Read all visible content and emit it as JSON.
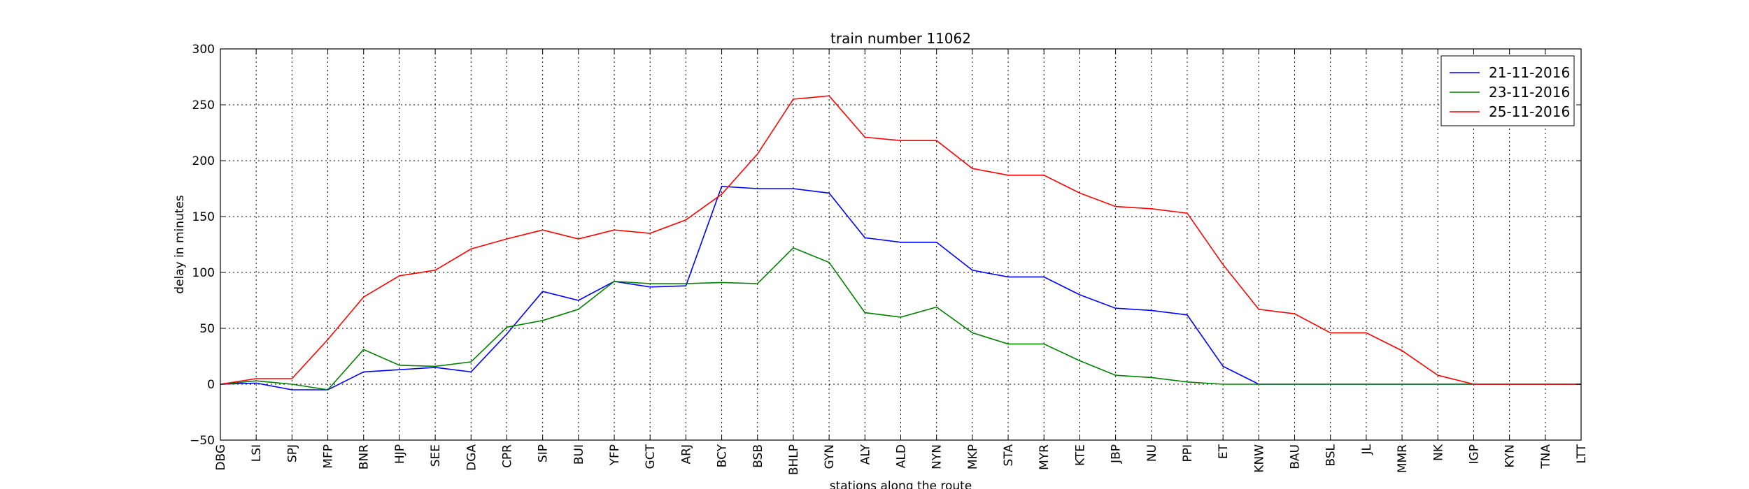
{
  "chart_data": {
    "type": "line",
    "title": "train number 11062",
    "xlabel": "stations along the route",
    "ylabel": "delay in minutes",
    "ylim": [
      -50,
      300
    ],
    "yticks": [
      "−50",
      "0",
      "50",
      "100",
      "150",
      "200",
      "250",
      "300"
    ],
    "grid": true,
    "legend_position": "top-right",
    "categories": [
      "DBG",
      "LSI",
      "SPJ",
      "MFP",
      "BNR",
      "HJP",
      "SEE",
      "DGA",
      "CPR",
      "SIP",
      "BUI",
      "YFP",
      "GCT",
      "ARJ",
      "BCY",
      "BSB",
      "BHLP",
      "GYN",
      "ALY",
      "ALD",
      "NYN",
      "MKP",
      "STA",
      "MYR",
      "KTE",
      "JBP",
      "NU",
      "PPI",
      "ET",
      "KNW",
      "BAU",
      "BSL",
      "JL",
      "MMR",
      "NK",
      "IGP",
      "KYN",
      "TNA",
      "LTT"
    ],
    "series": [
      {
        "name": "21-11-2016",
        "color": "#0000ff",
        "values": [
          0,
          1,
          -5,
          -5,
          11,
          13,
          15,
          11,
          45,
          83,
          75,
          92,
          87,
          88,
          177,
          175,
          175,
          171,
          131,
          127,
          127,
          102,
          96,
          96,
          80,
          68,
          66,
          62,
          16,
          0,
          0,
          0,
          0,
          0,
          0,
          0,
          0,
          0,
          0
        ]
      },
      {
        "name": "23-11-2016",
        "color": "#008000",
        "values": [
          0,
          3,
          0,
          -5,
          31,
          17,
          16,
          20,
          51,
          57,
          67,
          92,
          90,
          90,
          91,
          90,
          122,
          109,
          64,
          60,
          69,
          46,
          36,
          36,
          21,
          8,
          6,
          2,
          0,
          0,
          0,
          0,
          0,
          0,
          0,
          0,
          0,
          0,
          0
        ]
      },
      {
        "name": "25-11-2016",
        "color": "#ff0000",
        "values": [
          0,
          5,
          5,
          40,
          78,
          97,
          102,
          121,
          130,
          138,
          130,
          138,
          135,
          147,
          170,
          206,
          255,
          258,
          221,
          218,
          218,
          193,
          187,
          187,
          171,
          159,
          157,
          153,
          107,
          67,
          63,
          46,
          46,
          30,
          8,
          0,
          0,
          0,
          0
        ]
      }
    ]
  }
}
